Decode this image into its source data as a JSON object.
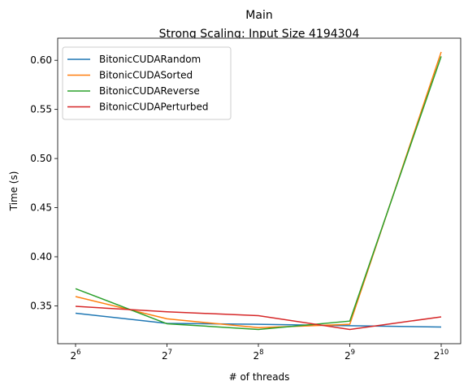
{
  "chart_data": {
    "type": "line",
    "title": "Main",
    "subtitle": "Strong Scaling: Input Size 4194304",
    "xlabel": "# of threads",
    "ylabel": "Time (s)",
    "x_scale": "log2",
    "x": [
      64,
      128,
      256,
      512,
      1024
    ],
    "x_ticks": [
      {
        "base": "2",
        "exp": "6"
      },
      {
        "base": "2",
        "exp": "7"
      },
      {
        "base": "2",
        "exp": "8"
      },
      {
        "base": "2",
        "exp": "9"
      },
      {
        "base": "2",
        "exp": "10"
      }
    ],
    "y_ticks": [
      "0.35",
      "0.40",
      "0.45",
      "0.50",
      "0.55",
      "0.60"
    ],
    "ylim": [
      0.3115,
      0.6225
    ],
    "grid": false,
    "legend_position": "top-left",
    "series": [
      {
        "name": "BitonicCUDARandom",
        "color": "#1f77b4",
        "values": [
          0.3425,
          0.3322,
          0.3312,
          0.3298,
          0.3285
        ]
      },
      {
        "name": "BitonicCUDASorted",
        "color": "#ff7f0e",
        "values": [
          0.3595,
          0.3368,
          0.3278,
          0.3312,
          0.6085
        ]
      },
      {
        "name": "BitonicCUDAReverse",
        "color": "#2ca02c",
        "values": [
          0.3675,
          0.3318,
          0.326,
          0.3345,
          0.604
        ]
      },
      {
        "name": "BitonicCUDAPerturbed",
        "color": "#d62728",
        "values": [
          0.3495,
          0.344,
          0.34,
          0.326,
          0.3388
        ]
      }
    ]
  }
}
